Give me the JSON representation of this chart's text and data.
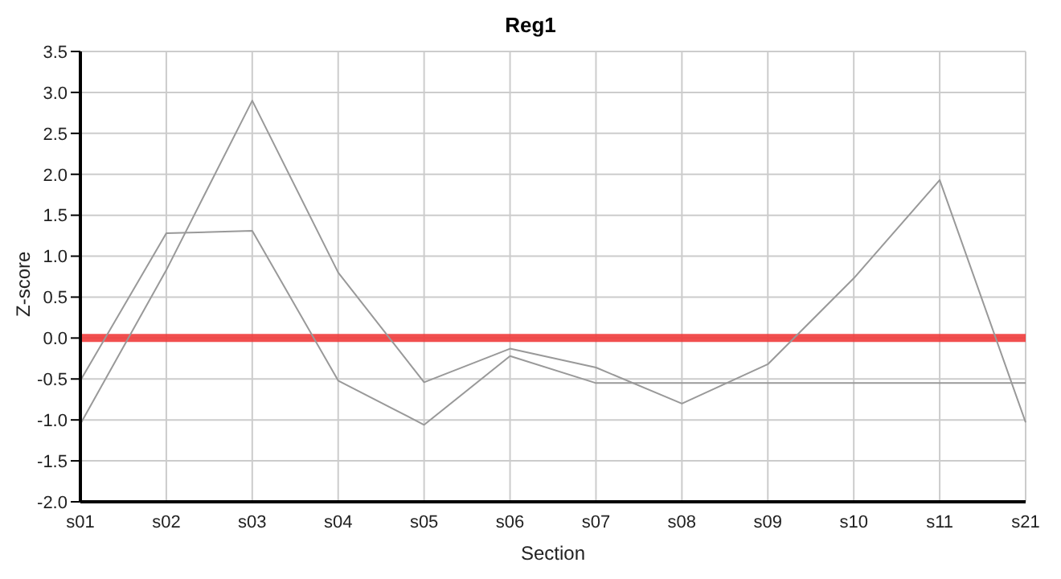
{
  "chart_data": {
    "type": "line",
    "title": "Reg1",
    "xlabel": "Section",
    "ylabel": "Z-score",
    "categories": [
      "s01",
      "s02",
      "s03",
      "s04",
      "s05",
      "s06",
      "s07",
      "s08",
      "s09",
      "s10",
      "s11",
      "s21"
    ],
    "series": [
      {
        "color": "#999999",
        "values": [
          -1.05,
          0.83,
          2.9,
          0.8,
          -0.54,
          -0.13,
          -0.36,
          -0.8,
          -0.32,
          0.73,
          1.93,
          -1.03
        ]
      },
      {
        "color": "#999999",
        "values": [
          -0.52,
          1.28,
          1.31,
          -0.52,
          -1.06,
          -0.22,
          -0.55,
          -0.55,
          -0.55,
          -0.55,
          -0.55,
          -0.55
        ]
      }
    ],
    "ylim": [
      -2,
      3.5
    ],
    "yticks": [
      {
        "value": -2,
        "label": "-2.0"
      },
      {
        "value": -1.5,
        "label": "-1.5"
      },
      {
        "value": -1,
        "label": "-1.0"
      },
      {
        "value": -0.5,
        "label": "-0.5"
      },
      {
        "value": 0,
        "label": "0.0"
      },
      {
        "value": 0.5,
        "label": "0.5"
      },
      {
        "value": 1,
        "label": "1.0"
      },
      {
        "value": 1.5,
        "label": "1.5"
      },
      {
        "value": 2,
        "label": "2.0"
      },
      {
        "value": 2.5,
        "label": "2.5"
      },
      {
        "value": 3,
        "label": "3.0"
      },
      {
        "value": 3.5,
        "label": "3.5"
      }
    ],
    "ref_lines": [
      {
        "axis": "y",
        "value": 0,
        "color": "#f03c3c"
      }
    ],
    "grid": true,
    "marker": "none",
    "line_style": "solid"
  }
}
